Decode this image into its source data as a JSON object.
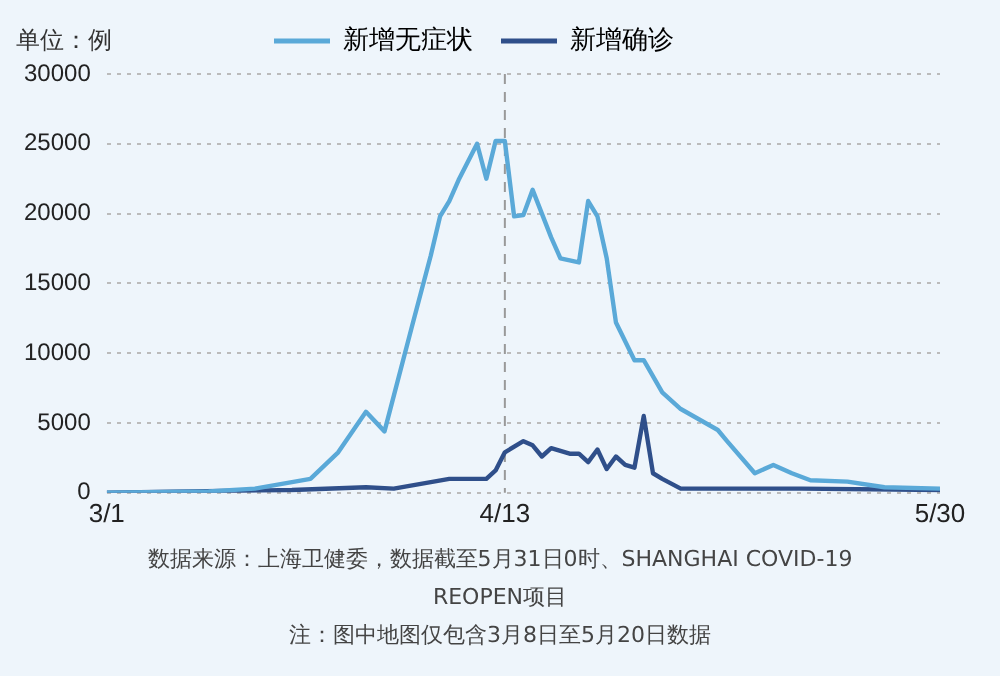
{
  "chart_data": {
    "type": "line",
    "ylabel": "单位：例",
    "legend": "top",
    "grid": "y",
    "marker": "none",
    "line_style": "solid",
    "xlim": [
      "--03-01",
      "--05-30"
    ],
    "xticks": [
      {
        "value": "--03-01",
        "label": "3/1"
      },
      {
        "value": "--04-13",
        "label": "4/13"
      },
      {
        "value": "--05-30",
        "label": "5/30"
      }
    ],
    "ylim": [
      0,
      30000
    ],
    "yticks": [
      0,
      5000,
      10000,
      15000,
      20000,
      25000,
      30000
    ],
    "ref_lines": [
      {
        "axis": "x",
        "value": "--04-13",
        "label": null,
        "color": "#999999",
        "line_style": "dashed"
      }
    ],
    "series": [
      {
        "name": "新增无症状",
        "color": "#5aa9d8",
        "x": [
          "--03-01",
          "--03-12",
          "--03-17",
          "--03-23",
          "--03-26",
          "--03-29",
          "--03-31",
          "--04-03",
          "--04-05",
          "--04-06",
          "--04-07",
          "--04-08",
          "--04-10",
          "--04-11",
          "--04-12",
          "--04-13",
          "--04-14",
          "--04-15",
          "--04-16",
          "--04-18",
          "--04-19",
          "--04-21",
          "--04-22",
          "--04-23",
          "--04-24",
          "--04-25",
          "--04-27",
          "--04-28",
          "--04-30",
          "--05-02",
          "--05-06",
          "--05-07",
          "--05-10",
          "--05-12",
          "--05-14",
          "--05-16",
          "--05-20",
          "--05-24",
          "--05-30"
        ],
        "values": [
          0,
          100,
          300,
          1000,
          2900,
          5800,
          4400,
          12000,
          17000,
          19800,
          20900,
          22400,
          25000,
          22500,
          25200,
          25200,
          19800,
          19900,
          21700,
          18300,
          16800,
          16500,
          20900,
          19800,
          16800,
          12200,
          9500,
          9500,
          7200,
          6000,
          4500,
          3700,
          1400,
          2000,
          1400,
          900,
          800,
          400,
          300
        ]
      },
      {
        "name": "新增确诊",
        "color": "#2f4f8a",
        "x": [
          "--03-01",
          "--03-21",
          "--03-29",
          "--04-01",
          "--04-07",
          "--04-11",
          "--04-12",
          "--04-13",
          "--04-15",
          "--04-16",
          "--04-17",
          "--04-18",
          "--04-20",
          "--04-21",
          "--04-22",
          "--04-23",
          "--04-24",
          "--04-25",
          "--04-26",
          "--04-27",
          "--04-28",
          "--04-29",
          "--04-30",
          "--05-02",
          "--05-15",
          "--05-30"
        ],
        "values": [
          0,
          200,
          400,
          300,
          1000,
          1000,
          1600,
          2900,
          3700,
          3400,
          2600,
          3200,
          2800,
          2800,
          2200,
          3100,
          1700,
          2600,
          2000,
          1800,
          5500,
          1400,
          1000,
          300,
          300,
          200
        ]
      }
    ],
    "annotations": [
      "数据来源：上海卫健委，数据截至5月31日0时、SHANGHAI COVID-19 REOPEN项目",
      "注：图中地图仅包含3月8日至5月20日数据"
    ]
  }
}
